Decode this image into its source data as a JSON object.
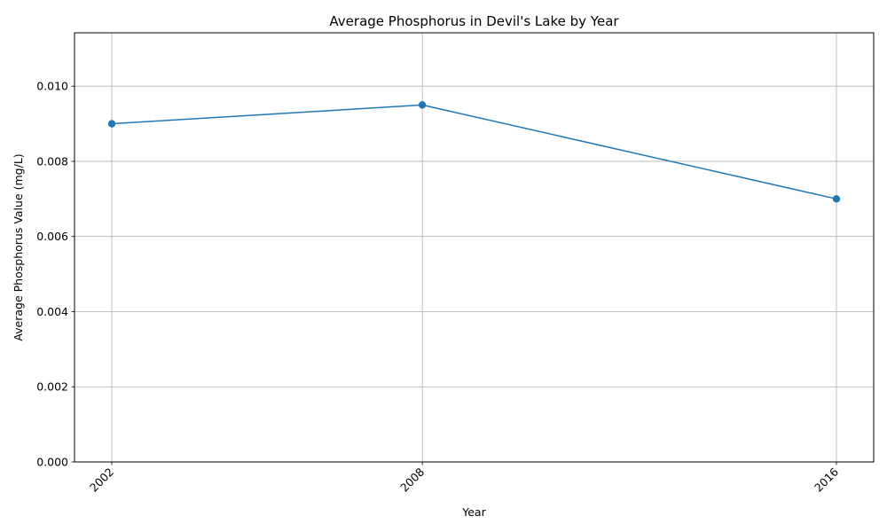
{
  "chart_data": {
    "type": "line",
    "title": "Average Phosphorus in Devil's Lake by Year",
    "xlabel": "Year",
    "ylabel": "Average Phosphorus Value (mg/L)",
    "x": [
      2002,
      2008,
      2016
    ],
    "x_tick_labels": [
      "2002",
      "2008",
      "2016"
    ],
    "xlim": [
      2001.28,
      2016.72
    ],
    "ylim": [
      0,
      0.01142
    ],
    "y_ticks": [
      0,
      0.002,
      0.004,
      0.006,
      0.008,
      0.01
    ],
    "y_tick_labels": [
      "0.000",
      "0.002",
      "0.004",
      "0.006",
      "0.008",
      "0.010"
    ],
    "grid": true,
    "series": [
      {
        "values": [
          0.009,
          0.0095,
          0.007
        ],
        "color": "#1f77b4",
        "marker": "circle"
      }
    ]
  }
}
